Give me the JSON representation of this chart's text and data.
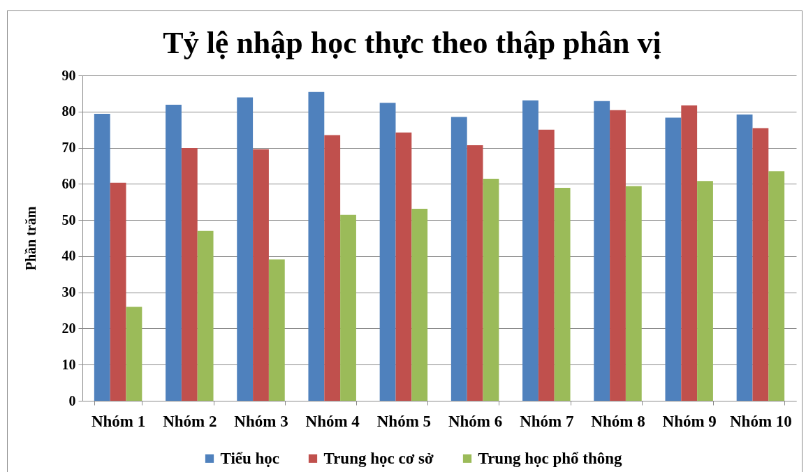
{
  "chart_data": {
    "type": "bar",
    "title": "Tỷ lệ nhập học thực theo thập phân vị",
    "ylabel": "Phần trăm",
    "categories": [
      "Nhóm 1",
      "Nhóm 2",
      "Nhóm 3",
      "Nhóm 4",
      "Nhóm 5",
      "Nhóm 6",
      "Nhóm 7",
      "Nhóm 8",
      "Nhóm 9",
      "Nhóm 10"
    ],
    "series": [
      {
        "name": "Tiểu học",
        "color": "#4f81bd",
        "values": [
          79.4,
          81.9,
          83.9,
          85.4,
          82.4,
          78.5,
          83.1,
          82.9,
          78.3,
          79.2
        ]
      },
      {
        "name": "Trung học cơ sở",
        "color": "#c0504d",
        "values": [
          60.3,
          69.9,
          69.6,
          73.5,
          74.2,
          70.7,
          75.0,
          80.4,
          81.7,
          75.4
        ]
      },
      {
        "name": "Trung học phổ thông",
        "color": "#9bbb59",
        "values": [
          26.0,
          47.0,
          39.1,
          51.4,
          53.1,
          61.4,
          58.9,
          59.4,
          60.8,
          63.5
        ]
      }
    ],
    "ylim": [
      0,
      90
    ],
    "yticks": [
      0,
      10,
      20,
      30,
      40,
      50,
      60,
      70,
      80,
      90
    ],
    "grid": "y",
    "legend": "bottom"
  }
}
